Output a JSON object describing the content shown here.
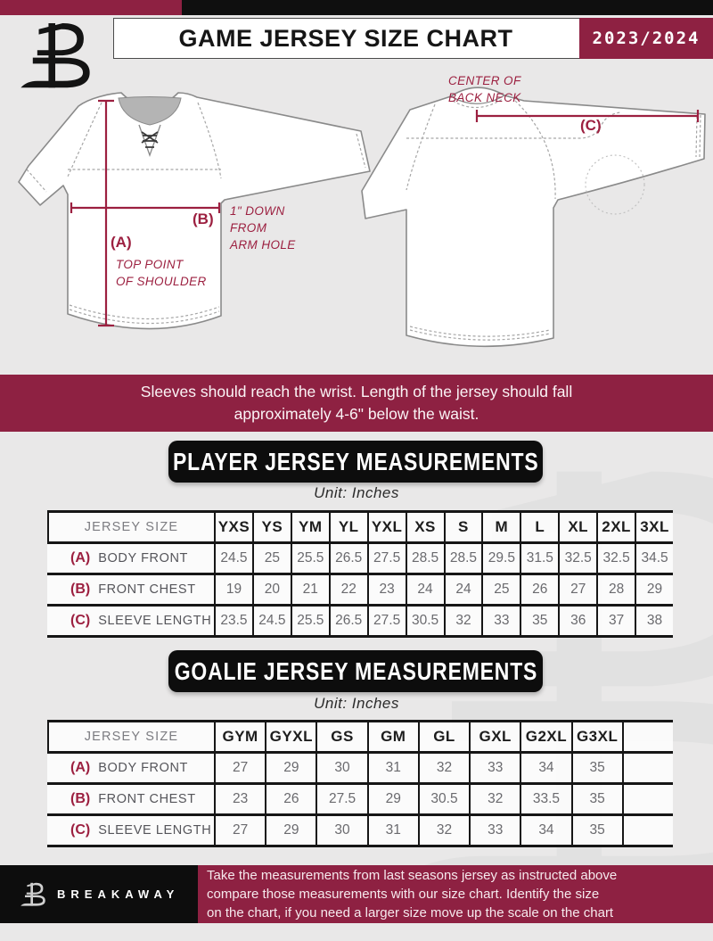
{
  "header": {
    "title": "GAME JERSEY SIZE CHART",
    "season": "2023/2024"
  },
  "diagram": {
    "front": {
      "label_a": "(A)",
      "label_b": "(B)",
      "note_a": [
        "TOP POINT",
        "OF SHOULDER"
      ],
      "note_b": [
        "1\" DOWN",
        "FROM",
        "ARM HOLE"
      ]
    },
    "back": {
      "label_c": "(C)",
      "note_c": [
        "CENTER OF",
        "BACK NECK"
      ]
    }
  },
  "banner": {
    "lines": [
      "Sleeves should reach the wrist. Length of the jersey should fall",
      "approximately 4-6\" below the waist."
    ]
  },
  "player_table": {
    "title": "PLAYER JERSEY MEASUREMENTS",
    "unit": "Unit: Inches",
    "corner": "JERSEY SIZE",
    "sizes": [
      "YXS",
      "YS",
      "YM",
      "YL",
      "YXL",
      "XS",
      "S",
      "M",
      "L",
      "XL",
      "2XL",
      "3XL"
    ],
    "rows": [
      {
        "key": "(A)",
        "label": "BODY FRONT",
        "values": [
          "24.5",
          "25",
          "25.5",
          "26.5",
          "27.5",
          "28.5",
          "28.5",
          "29.5",
          "31.5",
          "32.5",
          "32.5",
          "34.5"
        ]
      },
      {
        "key": "(B)",
        "label": "FRONT CHEST",
        "values": [
          "19",
          "20",
          "21",
          "22",
          "23",
          "24",
          "24",
          "25",
          "26",
          "27",
          "28",
          "29"
        ]
      },
      {
        "key": "(C)",
        "label": "SLEEVE LENGTH",
        "values": [
          "23.5",
          "24.5",
          "25.5",
          "26.5",
          "27.5",
          "30.5",
          "32",
          "33",
          "35",
          "36",
          "37",
          "38"
        ]
      }
    ]
  },
  "goalie_table": {
    "title": "GOALIE JERSEY MEASUREMENTS",
    "unit": "Unit: Inches",
    "corner": "JERSEY SIZE",
    "sizes": [
      "GYM",
      "GYXL",
      "GS",
      "GM",
      "GL",
      "GXL",
      "G2XL",
      "G3XL",
      ""
    ],
    "rows": [
      {
        "key": "(A)",
        "label": "BODY FRONT",
        "values": [
          "27",
          "29",
          "30",
          "31",
          "32",
          "33",
          "34",
          "35",
          ""
        ]
      },
      {
        "key": "(B)",
        "label": "FRONT CHEST",
        "values": [
          "23",
          "26",
          "27.5",
          "29",
          "30.5",
          "32",
          "33.5",
          "35",
          ""
        ]
      },
      {
        "key": "(C)",
        "label": "SLEEVE LENGTH",
        "values": [
          "27",
          "29",
          "30",
          "31",
          "32",
          "33",
          "34",
          "35",
          ""
        ]
      }
    ]
  },
  "footer": {
    "brand": "BREAKAWAY",
    "lines": [
      "Take the measurements from last seasons jersey as instructed above",
      "compare those measurements  with our size chart. Identify the size",
      "on the chart, if you need a larger size move up the scale on the chart"
    ]
  },
  "colors": {
    "maroon": "#8e2142",
    "measurement_accent": "#9c2040",
    "black": "#0d0d0d",
    "page_bg": "#e9e8e8"
  }
}
